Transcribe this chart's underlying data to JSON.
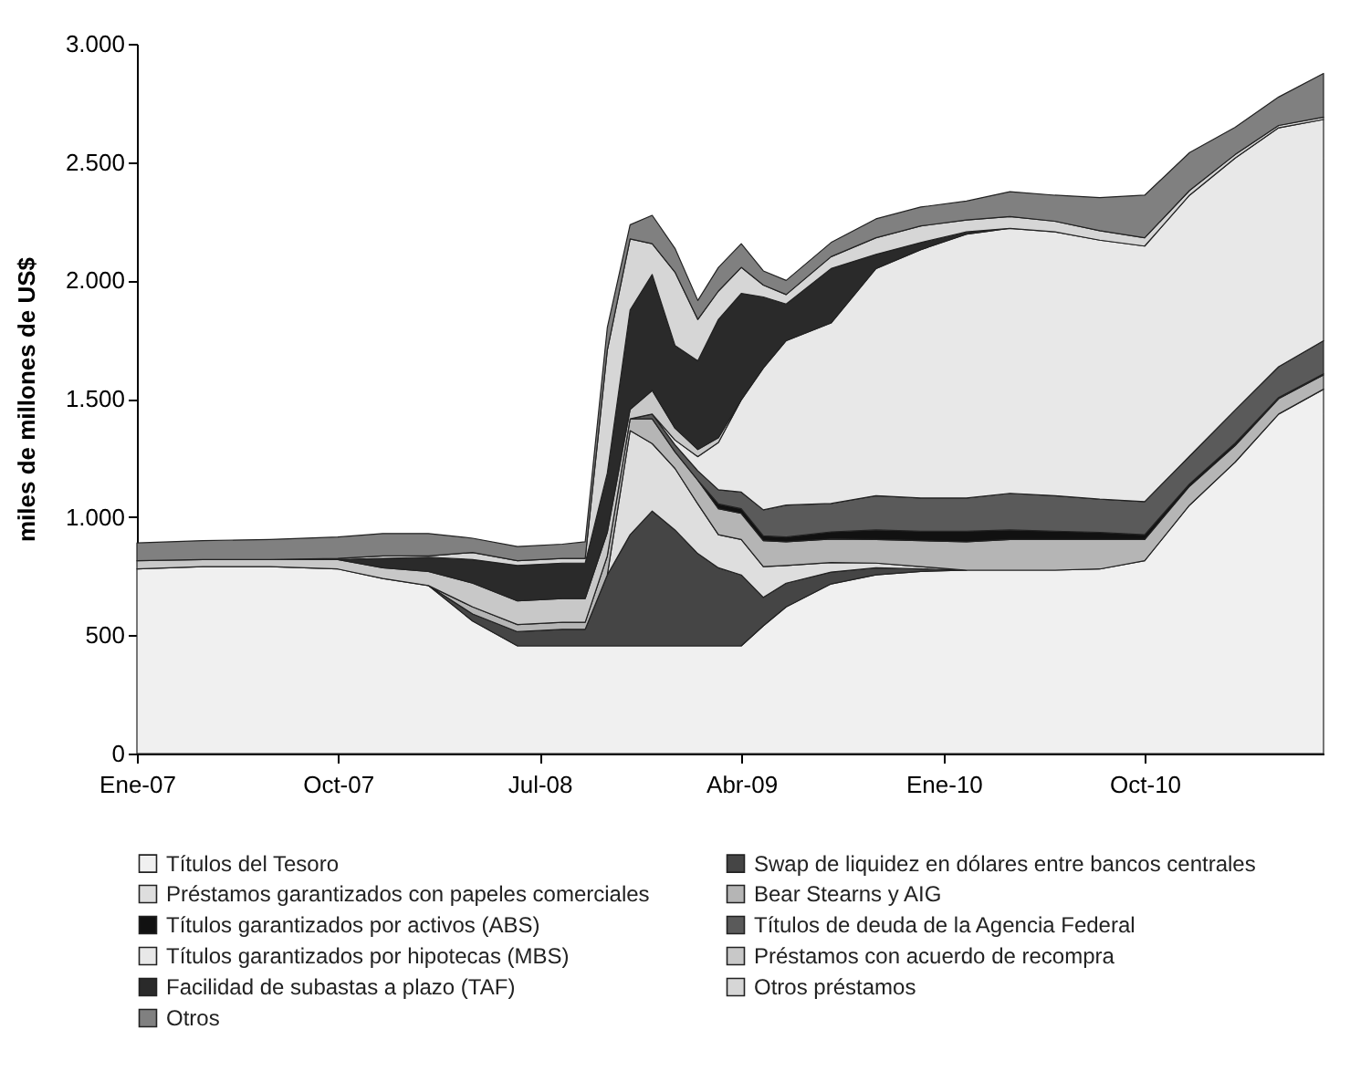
{
  "chart_data": {
    "type": "area",
    "ylabel": "miles de millones de US$",
    "stacked": true,
    "grid": false,
    "legend": "bottom",
    "x": [
      "2007-01",
      "2007-04",
      "2007-07",
      "2007-10",
      "2007-12",
      "2008-02",
      "2008-04",
      "2008-06",
      "2008-08",
      "2008-09",
      "2008-10",
      "2008-11",
      "2008-12",
      "2009-01",
      "2009-02",
      "2009-03",
      "2009-04",
      "2009-05",
      "2009-06",
      "2009-08",
      "2009-10",
      "2009-12",
      "2010-02",
      "2010-04",
      "2010-06",
      "2010-08",
      "2010-10",
      "2010-12",
      "2011-02",
      "2011-04",
      "2011-06"
    ],
    "xlim": [
      "2007-01",
      "2011-06"
    ],
    "xticks": [
      {
        "value": "2007-01",
        "label": "Ene-07"
      },
      {
        "value": "2007-10",
        "label": "Oct-07"
      },
      {
        "value": "2008-07",
        "label": "Jul-08"
      },
      {
        "value": "2009-04",
        "label": "Abr-09"
      },
      {
        "value": "2010-01",
        "label": "Ene-10"
      },
      {
        "value": "2010-10",
        "label": "Oct-10"
      }
    ],
    "ylim": [
      0,
      3000
    ],
    "yticks": [
      0,
      500,
      {
        "value": 1000,
        "label": "1.000"
      },
      {
        "value": 1500,
        "label": "1.500"
      },
      {
        "value": 2000,
        "label": "2.000"
      },
      {
        "value": 2500,
        "label": "2.500"
      },
      {
        "value": 3000,
        "label": "3.000"
      }
    ],
    "series": [
      {
        "name": "Títulos del Tesoro",
        "color": "#f0f0f0",
        "values": [
          780,
          790,
          790,
          780,
          740,
          710,
          560,
          455,
          455,
          455,
          455,
          455,
          455,
          455,
          455,
          455,
          455,
          540,
          620,
          717,
          755,
          770,
          775,
          775,
          775,
          780,
          815,
          1050,
          1232,
          1435,
          1540
        ]
      },
      {
        "name": "Swap de liquidez en dólares entre bancos centrales",
        "color": "#454545",
        "values": [
          null,
          null,
          null,
          null,
          null,
          0,
          30,
          60,
          70,
          70,
          300,
          470,
          570,
          490,
          390,
          330,
          300,
          120,
          100,
          50,
          30,
          10,
          0,
          null,
          null,
          null,
          null,
          null,
          null,
          null,
          null
        ]
      },
      {
        "name": "Préstamos garantizados con papeles comerciales",
        "color": "#dedede",
        "values": [
          null,
          null,
          null,
          null,
          null,
          null,
          null,
          null,
          null,
          null,
          0,
          440,
          285,
          260,
          210,
          140,
          150,
          130,
          75,
          40,
          20,
          10,
          0,
          null,
          null,
          null,
          null,
          null,
          null,
          null,
          null
        ]
      },
      {
        "name": "Bear Stearns y AIG",
        "color": "#b5b5b5",
        "values": [
          null,
          null,
          null,
          null,
          null,
          0,
          30,
          30,
          30,
          30,
          80,
          50,
          105,
          70,
          100,
          110,
          110,
          110,
          100,
          100,
          100,
          110,
          120,
          130,
          130,
          125,
          90,
          80,
          70,
          65,
          60
        ]
      },
      {
        "name": "Títulos garantizados por activos (ABS)",
        "color": "#111111",
        "values": [
          null,
          null,
          null,
          null,
          null,
          null,
          null,
          null,
          null,
          null,
          null,
          null,
          null,
          null,
          0,
          20,
          20,
          20,
          20,
          30,
          40,
          40,
          45,
          40,
          35,
          30,
          20,
          10,
          10,
          5,
          5
        ]
      },
      {
        "name": "Títulos de deuda de la Agencia Federal",
        "color": "#5a5a5a",
        "values": [
          null,
          null,
          null,
          null,
          null,
          null,
          null,
          null,
          null,
          null,
          null,
          0,
          20,
          30,
          40,
          60,
          70,
          110,
          135,
          120,
          145,
          140,
          140,
          155,
          150,
          140,
          140,
          117,
          140,
          130,
          140
        ]
      },
      {
        "name": "Títulos garantizados por hipotecas (MBS)",
        "color": "#e8e8e8",
        "values": [
          null,
          null,
          null,
          null,
          null,
          null,
          null,
          null,
          null,
          null,
          null,
          null,
          0,
          20,
          60,
          200,
          390,
          600,
          695,
          763,
          960,
          1050,
          1115,
          1120,
          1115,
          1095,
          1080,
          1103,
          1065,
          1010,
          935
        ]
      },
      {
        "name": "Préstamos con acuerdo de recompra",
        "color": "#c8c8c8",
        "values": [
          35,
          30,
          30,
          40,
          45,
          60,
          100,
          100,
          100,
          100,
          100,
          40,
          100,
          50,
          30,
          20,
          0,
          null,
          null,
          null,
          null,
          null,
          null,
          null,
          null,
          null,
          null,
          null,
          null,
          null,
          null
        ]
      },
      {
        "name": "Facilidad de subastas a plazo (TAF)",
        "color": "#2a2a2a",
        "values": [
          null,
          null,
          null,
          0,
          40,
          60,
          100,
          150,
          150,
          150,
          250,
          420,
          490,
          350,
          375,
          500,
          450,
          300,
          155,
          230,
          60,
          30,
          10,
          0,
          null,
          null,
          null,
          null,
          null,
          null,
          null
        ]
      },
      {
        "name": "Otros préstamos",
        "color": "#d6d6d6",
        "values": [
          null,
          null,
          0,
          5,
          10,
          5,
          30,
          20,
          20,
          20,
          520,
          300,
          130,
          310,
          175,
          120,
          110,
          50,
          40,
          50,
          70,
          70,
          50,
          50,
          45,
          40,
          35,
          20,
          15,
          10,
          10
        ]
      },
      {
        "name": "Otros",
        "color": "#808080",
        "values": [
          75,
          80,
          85,
          90,
          95,
          95,
          60,
          60,
          60,
          70,
          95,
          60,
          120,
          100,
          80,
          100,
          100,
          60,
          60,
          60,
          80,
          80,
          80,
          105,
          110,
          140,
          180,
          160,
          115,
          120,
          185
        ]
      }
    ]
  }
}
